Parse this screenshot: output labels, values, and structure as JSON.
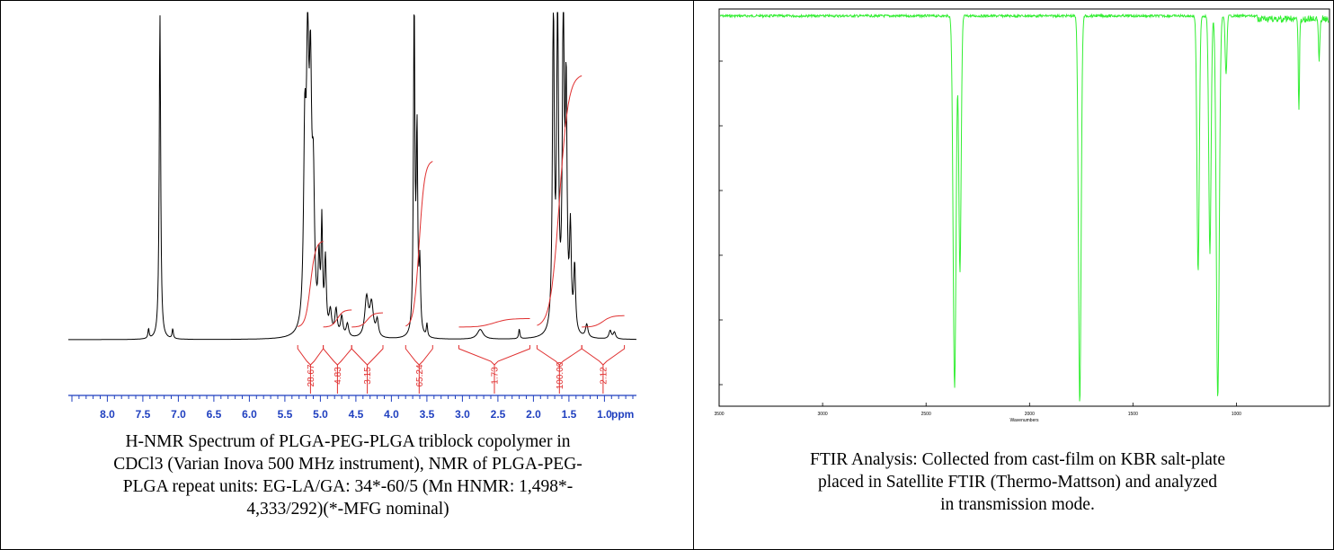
{
  "left_panel": {
    "caption": "H-NMR Spectrum of PLGA-PEG-PLGA triblock copolymer in CDCl3 (Varian Inova 500 MHz instrument), NMR of PLGA-PEG-PLGA repeat units: EG-LA/GA: 34*-60/5 (Mn HNMR: 1,498*-4,333/292)(*-MFG nominal)",
    "caption_lines": [
      "H-NMR Spectrum of PLGA-PEG-PLGA triblock copolymer in",
      "CDCl3 (Varian Inova 500 MHz instrument), NMR of PLGA-PEG-",
      "PLGA repeat units: EG-LA/GA: 34*-60/5 (Mn HNMR: 1,498*-",
      "4,333/292)(*-MFG nominal)"
    ]
  },
  "right_panel": {
    "caption_lines": [
      "FTIR Analysis: Collected from cast-film on KBR salt-plate",
      "placed in Satellite FTIR (Thermo-Mattson) and analyzed",
      "in transmission mode."
    ]
  },
  "chart_data": [
    {
      "type": "line",
      "name": "nmr",
      "xlabel": "ppm",
      "x_reversed": true,
      "xlim": [
        0.55,
        8.55
      ],
      "ylim": [
        0,
        100
      ],
      "tick_labels": [
        "8.0",
        "7.5",
        "7.0",
        "6.5",
        "6.0",
        "5.5",
        "5.0",
        "4.5",
        "4.0",
        "3.5",
        "3.0",
        "2.5",
        "2.0",
        "1.5",
        "1.0"
      ],
      "tick_values": [
        8.0,
        7.5,
        7.0,
        6.5,
        6.0,
        5.5,
        5.0,
        4.5,
        4.0,
        3.5,
        3.0,
        2.5,
        2.0,
        1.5,
        1.0
      ],
      "peaks": [
        {
          "ppm": 7.26,
          "height": 100,
          "width": 0.012
        },
        {
          "ppm": 7.42,
          "height": 3,
          "width": 0.01
        },
        {
          "ppm": 7.08,
          "height": 3,
          "width": 0.01
        },
        {
          "ppm": 5.22,
          "height": 55,
          "width": 0.02
        },
        {
          "ppm": 5.18,
          "height": 78,
          "width": 0.02
        },
        {
          "ppm": 5.14,
          "height": 68,
          "width": 0.02
        },
        {
          "ppm": 5.1,
          "height": 40,
          "width": 0.02
        },
        {
          "ppm": 5.02,
          "height": 20,
          "width": 0.015
        },
        {
          "ppm": 4.98,
          "height": 32,
          "width": 0.012
        },
        {
          "ppm": 4.93,
          "height": 22,
          "width": 0.015
        },
        {
          "ppm": 4.86,
          "height": 7,
          "width": 0.02
        },
        {
          "ppm": 4.78,
          "height": 8,
          "width": 0.02
        },
        {
          "ppm": 4.7,
          "height": 6,
          "width": 0.02
        },
        {
          "ppm": 4.62,
          "height": 4,
          "width": 0.02
        },
        {
          "ppm": 4.35,
          "height": 12,
          "width": 0.03
        },
        {
          "ppm": 4.28,
          "height": 10,
          "width": 0.03
        },
        {
          "ppm": 4.2,
          "height": 5,
          "width": 0.02
        },
        {
          "ppm": 3.68,
          "height": 100,
          "width": 0.012
        },
        {
          "ppm": 3.64,
          "height": 60,
          "width": 0.012
        },
        {
          "ppm": 3.6,
          "height": 20,
          "width": 0.012
        },
        {
          "ppm": 3.5,
          "height": 4,
          "width": 0.01
        },
        {
          "ppm": 2.75,
          "height": 3,
          "width": 0.05
        },
        {
          "ppm": 2.2,
          "height": 3,
          "width": 0.01
        },
        {
          "ppm": 1.72,
          "height": 100,
          "width": 0.015
        },
        {
          "ppm": 1.66,
          "height": 100,
          "width": 0.015
        },
        {
          "ppm": 1.58,
          "height": 100,
          "width": 0.015
        },
        {
          "ppm": 1.54,
          "height": 70,
          "width": 0.015
        },
        {
          "ppm": 1.48,
          "height": 30,
          "width": 0.015
        },
        {
          "ppm": 1.42,
          "height": 20,
          "width": 0.015
        },
        {
          "ppm": 1.25,
          "height": 4,
          "width": 0.02
        },
        {
          "ppm": 0.92,
          "height": 2.5,
          "width": 0.02
        },
        {
          "ppm": 0.86,
          "height": 2,
          "width": 0.02
        }
      ],
      "integrals": [
        {
          "label": "28.67",
          "from": 5.32,
          "to": 4.96,
          "rise": 30
        },
        {
          "label": "4.83",
          "from": 4.96,
          "to": 4.56,
          "rise": 6
        },
        {
          "label": "3.15",
          "from": 4.56,
          "to": 4.12,
          "rise": 5
        },
        {
          "label": "65.24",
          "from": 3.8,
          "to": 3.42,
          "rise": 58
        },
        {
          "label": "1.73",
          "from": 3.05,
          "to": 2.05,
          "rise": 3
        },
        {
          "label": "100.00",
          "from": 1.95,
          "to": 1.32,
          "rise": 88
        },
        {
          "label": "2.12",
          "from": 1.32,
          "to": 0.72,
          "rise": 4
        }
      ]
    },
    {
      "type": "line",
      "name": "ftir",
      "xlabel": "Wavenumbers",
      "x_reversed": true,
      "xlim": [
        550,
        3500
      ],
      "ylim": [
        0,
        100
      ],
      "tick_labels": [
        "3500",
        "3000",
        "2500",
        "2000",
        "1500",
        "1000"
      ],
      "tick_values": [
        3500,
        3000,
        2500,
        2000,
        1500,
        1000
      ],
      "baseline": 99,
      "bands": [
        {
          "wn": 2362,
          "depth": 94,
          "width": 10
        },
        {
          "wn": 2336,
          "depth": 65,
          "width": 8
        },
        {
          "wn": 1757,
          "depth": 98,
          "width": 9
        },
        {
          "wn": 1185,
          "depth": 65,
          "width": 8
        },
        {
          "wn": 1128,
          "depth": 60,
          "width": 8
        },
        {
          "wn": 1090,
          "depth": 97,
          "width": 10
        },
        {
          "wn": 1050,
          "depth": 15,
          "width": 6
        },
        {
          "wn": 698,
          "depth": 24,
          "width": 4
        },
        {
          "wn": 600,
          "depth": 10,
          "width": 5
        }
      ]
    }
  ]
}
